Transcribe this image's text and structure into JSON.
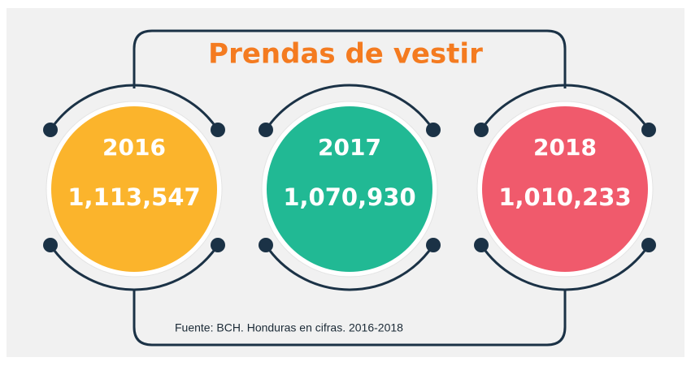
{
  "title": "Prendas de vestir",
  "items": [
    {
      "year": "2016",
      "value": "1,113,547",
      "color": "#fbb42c"
    },
    {
      "year": "2017",
      "value": "1,070,930",
      "color": "#21b994"
    },
    {
      "year": "2018",
      "value": "1,010,233",
      "color": "#f05a6c"
    }
  ],
  "source": "Fuente: BCH. Honduras en cifras. 2016-2018"
}
